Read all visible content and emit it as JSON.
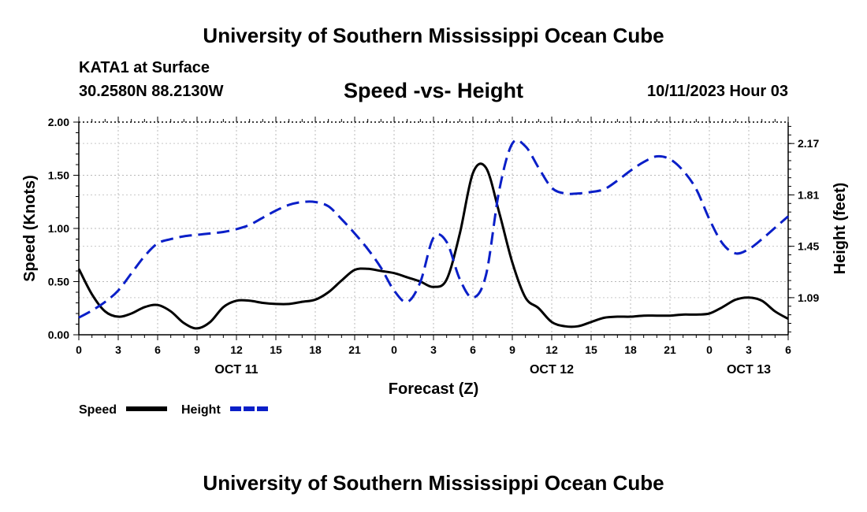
{
  "header": {
    "title": "University of Southern Mississippi Ocean Cube",
    "station": "KATA1 at Surface",
    "coords": "30.2580N  88.2130W",
    "subtitle": "Speed -vs- Height",
    "timestamp": "10/11/2023 Hour 03"
  },
  "footer": {
    "title": "University of Southern Mississippi Ocean Cube"
  },
  "chart_data": {
    "type": "line",
    "x_hours": [
      0,
      3,
      6,
      9,
      12,
      15,
      18,
      21,
      24,
      27,
      30,
      33,
      36,
      39,
      42,
      45,
      48,
      51,
      54
    ],
    "x_tick_labels": [
      "0",
      "3",
      "6",
      "9",
      "12",
      "15",
      "18",
      "21",
      "0",
      "3",
      "6",
      "9",
      "12",
      "15",
      "18",
      "21",
      "0",
      "3",
      "6"
    ],
    "day_labels": [
      {
        "label": "OCT 11",
        "hour": 12
      },
      {
        "label": "OCT 12",
        "hour": 36
      },
      {
        "label": "OCT 13",
        "hour": 51
      }
    ],
    "xlabel": "Forecast (Z)",
    "ylabel_left": "Speed (Knots)",
    "ylabel_right": "Height (feet)",
    "ylim_left": [
      0,
      2.0
    ],
    "left_ticks": [
      "0.00",
      "0.50",
      "1.00",
      "1.50",
      "2.00"
    ],
    "ylim_right": [
      0.83,
      2.32
    ],
    "right_ticks": [
      "1.09",
      "1.45",
      "1.81",
      "2.17"
    ],
    "grid": true,
    "series": [
      {
        "name": "Speed",
        "color": "#000000",
        "dash": "solid",
        "axis": "left",
        "x": [
          0,
          1,
          2,
          3,
          4,
          5,
          6,
          7,
          8,
          9,
          10,
          11,
          12,
          13,
          14,
          15,
          16,
          17,
          18,
          19,
          20,
          21,
          22,
          23,
          24,
          25,
          26,
          27,
          28,
          29,
          30,
          31,
          32,
          33,
          34,
          35,
          36,
          37,
          38,
          39,
          40,
          41,
          42,
          43,
          44,
          45,
          46,
          47,
          48,
          49,
          50,
          51,
          52,
          53,
          54
        ],
        "values": [
          0.62,
          0.38,
          0.22,
          0.17,
          0.2,
          0.26,
          0.28,
          0.22,
          0.11,
          0.06,
          0.12,
          0.26,
          0.32,
          0.32,
          0.3,
          0.29,
          0.29,
          0.31,
          0.33,
          0.4,
          0.51,
          0.61,
          0.62,
          0.6,
          0.58,
          0.54,
          0.5,
          0.45,
          0.52,
          0.95,
          1.52,
          1.57,
          1.15,
          0.68,
          0.35,
          0.25,
          0.12,
          0.08,
          0.08,
          0.12,
          0.16,
          0.17,
          0.17,
          0.18,
          0.18,
          0.18,
          0.19,
          0.19,
          0.2,
          0.26,
          0.33,
          0.35,
          0.32,
          0.22,
          0.15
        ]
      },
      {
        "name": "Height",
        "color": "#0a1fc8",
        "dash": "long-dash",
        "axis": "right",
        "x": [
          0,
          1,
          2,
          3,
          4,
          5,
          6,
          7,
          8,
          9,
          10,
          11,
          12,
          13,
          14,
          15,
          16,
          17,
          18,
          19,
          20,
          21,
          22,
          23,
          24,
          25,
          26,
          27,
          28,
          29,
          30,
          31,
          32,
          33,
          34,
          35,
          36,
          37,
          38,
          39,
          40,
          41,
          42,
          43,
          44,
          45,
          46,
          47,
          48,
          49,
          50,
          51,
          52,
          53,
          54
        ],
        "values": [
          0.95,
          1.0,
          1.06,
          1.14,
          1.26,
          1.38,
          1.47,
          1.5,
          1.52,
          1.53,
          1.54,
          1.55,
          1.57,
          1.6,
          1.65,
          1.7,
          1.74,
          1.76,
          1.76,
          1.73,
          1.64,
          1.54,
          1.43,
          1.3,
          1.14,
          1.06,
          1.2,
          1.51,
          1.48,
          1.22,
          1.09,
          1.25,
          1.84,
          2.17,
          2.15,
          2.0,
          1.86,
          1.82,
          1.82,
          1.83,
          1.85,
          1.91,
          1.98,
          2.04,
          2.08,
          2.06,
          1.98,
          1.85,
          1.64,
          1.47,
          1.4,
          1.43,
          1.5,
          1.58,
          1.66
        ]
      }
    ]
  },
  "legend": [
    {
      "label": "Speed",
      "color": "#000000"
    },
    {
      "label": "Height",
      "color": "#0a1fc8"
    }
  ]
}
